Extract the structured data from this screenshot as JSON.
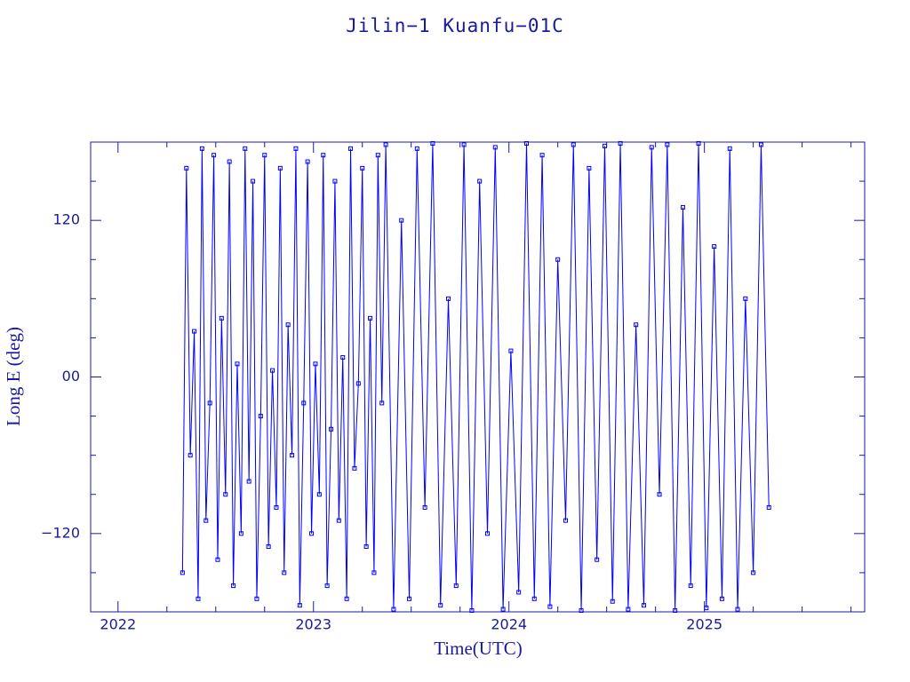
{
  "chart_data": {
    "type": "line",
    "title": "Jilin−1 Kuanfu−01C",
    "x_label": "Time(UTC)",
    "y_label": "Long E (deg)",
    "color": "#0000ff",
    "markers": true,
    "xlim": [
      2021.86,
      2025.82
    ],
    "ylim": [
      -180,
      180
    ],
    "xticks": [
      2022,
      2023,
      2024,
      2025
    ],
    "yticks": [
      {
        "value": -120,
        "label": "−120"
      },
      {
        "value": 0,
        "label": "00"
      },
      120
    ],
    "xminorticks": [
      2022.25,
      2022.5,
      2022.75,
      2023.25,
      2023.5,
      2023.75,
      2024.25,
      2024.5,
      2024.75,
      2025.25,
      2025.5,
      2025.75
    ],
    "yminorticks": [
      -150,
      -90,
      -60,
      -30,
      30,
      60,
      90,
      150
    ],
    "x": [
      2022.33,
      2022.35,
      2022.37,
      2022.39,
      2022.41,
      2022.43,
      2022.45,
      2022.47,
      2022.49,
      2022.51,
      2022.53,
      2022.55,
      2022.57,
      2022.59,
      2022.61,
      2022.63,
      2022.65,
      2022.67,
      2022.69,
      2022.71,
      2022.73,
      2022.75,
      2022.77,
      2022.79,
      2022.81,
      2022.83,
      2022.85,
      2022.87,
      2022.89,
      2022.91,
      2022.93,
      2022.95,
      2022.97,
      2022.99,
      2023.01,
      2023.03,
      2023.05,
      2023.07,
      2023.09,
      2023.11,
      2023.13,
      2023.15,
      2023.17,
      2023.19,
      2023.21,
      2023.23,
      2023.25,
      2023.27,
      2023.29,
      2023.31,
      2023.33,
      2023.35,
      2023.37,
      2023.41,
      2023.45,
      2023.49,
      2023.53,
      2023.57,
      2023.61,
      2023.65,
      2023.69,
      2023.73,
      2023.77,
      2023.81,
      2023.85,
      2023.89,
      2023.93,
      2023.97,
      2024.01,
      2024.05,
      2024.09,
      2024.13,
      2024.17,
      2024.21,
      2024.25,
      2024.29,
      2024.33,
      2024.37,
      2024.41,
      2024.45,
      2024.49,
      2024.53,
      2024.57,
      2024.61,
      2024.65,
      2024.69,
      2024.73,
      2024.77,
      2024.81,
      2024.85,
      2024.89,
      2024.93,
      2024.97,
      2025.01,
      2025.05,
      2025.09,
      2025.13,
      2025.17,
      2025.21,
      2025.25,
      2025.29,
      2025.33
    ],
    "values": [
      -150,
      160,
      -60,
      35,
      -170,
      175,
      -110,
      -20,
      170,
      -140,
      45,
      -90,
      165,
      -160,
      10,
      -120,
      175,
      -80,
      150,
      -170,
      -30,
      170,
      -130,
      5,
      -100,
      160,
      -150,
      40,
      -60,
      175,
      -175,
      -20,
      165,
      -120,
      10,
      -90,
      170,
      -160,
      -40,
      150,
      -110,
      15,
      -170,
      175,
      -70,
      -5,
      160,
      -130,
      45,
      -150,
      170,
      -20,
      178,
      -178,
      120,
      -170,
      175,
      -100,
      179,
      -175,
      60,
      -160,
      178,
      -179,
      150,
      -120,
      176,
      -178,
      20,
      -165,
      179,
      -170,
      170,
      -176,
      90,
      -110,
      178,
      -179,
      160,
      -140,
      177,
      -172,
      179,
      -178,
      40,
      -175,
      176,
      -90,
      178,
      -179,
      130,
      -160,
      179,
      -177,
      100,
      -170,
      175,
      -178,
      60,
      -150,
      178,
      -100
    ]
  }
}
